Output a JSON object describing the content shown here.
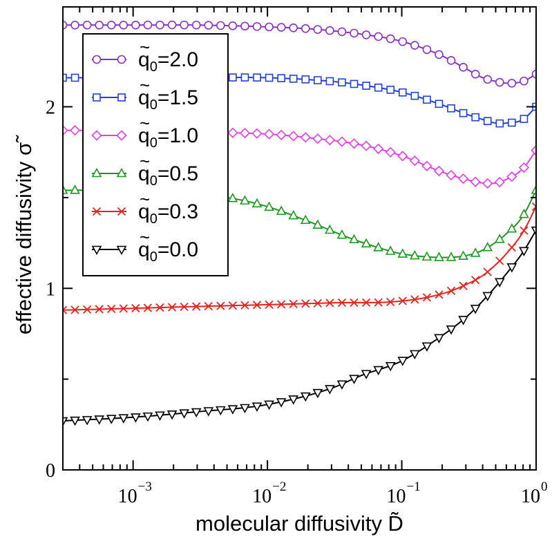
{
  "chart_data": {
    "type": "line",
    "xlabel": "molecular diffusivity D̃",
    "ylabel": "effective diffusivity σ̃",
    "xscale": "log",
    "xlim": [
      0.0003,
      1.0
    ],
    "ylim": [
      0,
      2.55
    ],
    "x_ticks": [
      {
        "value": 0.001,
        "base": "10",
        "exp": "−3"
      },
      {
        "value": 0.01,
        "base": "10",
        "exp": "−2"
      },
      {
        "value": 0.1,
        "base": "10",
        "exp": "−1"
      },
      {
        "value": 1.0,
        "base": "10",
        "exp": "0"
      }
    ],
    "y_ticks": [
      {
        "value": 0,
        "label": "0"
      },
      {
        "value": 1,
        "label": "1"
      },
      {
        "value": 2,
        "label": "2"
      }
    ],
    "y_minor_ticks": [
      0.5,
      1.5
    ],
    "legend_position": "upper-left",
    "series": [
      {
        "name": "q̃₀=2.0",
        "label_main": "q",
        "label_sub": "0",
        "label_value": "=2.0",
        "color": "#8b2fc9",
        "marker": "circle",
        "x": [
          0.0003,
          0.001,
          0.003,
          0.01,
          0.02,
          0.05,
          0.1,
          0.2,
          0.3,
          0.4,
          0.5,
          0.6,
          0.8,
          1.0
        ],
        "y": [
          2.45,
          2.45,
          2.45,
          2.44,
          2.43,
          2.4,
          2.36,
          2.28,
          2.21,
          2.16,
          2.14,
          2.13,
          2.14,
          2.18
        ]
      },
      {
        "name": "q̃₀=1.5",
        "label_main": "q",
        "label_sub": "0",
        "label_value": "=1.5",
        "color": "#1f3fe0",
        "marker": "square",
        "x": [
          0.0003,
          0.001,
          0.003,
          0.01,
          0.03,
          0.05,
          0.1,
          0.2,
          0.3,
          0.4,
          0.5,
          0.6,
          0.8,
          1.0
        ],
        "y": [
          2.16,
          2.16,
          2.16,
          2.16,
          2.14,
          2.12,
          2.08,
          2.01,
          1.96,
          1.93,
          1.91,
          1.91,
          1.93,
          2.0
        ]
      },
      {
        "name": "q̃₀=1.0",
        "label_main": "q",
        "label_sub": "0",
        "label_value": "=1.0",
        "color": "#e63ce6",
        "marker": "diamond",
        "x": [
          0.0003,
          0.001,
          0.003,
          0.01,
          0.02,
          0.05,
          0.1,
          0.2,
          0.3,
          0.4,
          0.5,
          0.6,
          0.8,
          1.0
        ],
        "y": [
          1.87,
          1.87,
          1.86,
          1.85,
          1.83,
          1.79,
          1.73,
          1.64,
          1.6,
          1.58,
          1.58,
          1.6,
          1.66,
          1.76
        ]
      },
      {
        "name": "q̃₀=0.5",
        "label_main": "q",
        "label_sub": "0",
        "label_value": "=0.5",
        "color": "#1a9a1a",
        "marker": "triangle-up",
        "x": [
          0.0003,
          0.001,
          0.003,
          0.006,
          0.01,
          0.02,
          0.04,
          0.07,
          0.1,
          0.2,
          0.3,
          0.4,
          0.6,
          0.8,
          1.0
        ],
        "y": [
          1.54,
          1.54,
          1.52,
          1.49,
          1.45,
          1.37,
          1.28,
          1.22,
          1.19,
          1.17,
          1.18,
          1.21,
          1.3,
          1.4,
          1.54
        ]
      },
      {
        "name": "q̃₀=0.3",
        "label_main": "q",
        "label_sub": "0",
        "label_value": "=0.3",
        "color": "#e8231e",
        "marker": "x",
        "x": [
          0.0003,
          0.001,
          0.003,
          0.01,
          0.03,
          0.1,
          0.2,
          0.3,
          0.4,
          0.5,
          0.6,
          0.8,
          1.0
        ],
        "y": [
          0.88,
          0.89,
          0.9,
          0.91,
          0.92,
          0.93,
          0.97,
          1.02,
          1.07,
          1.13,
          1.19,
          1.31,
          1.45
        ]
      },
      {
        "name": "q̃₀=0.0",
        "label_main": "q",
        "label_sub": "0",
        "label_value": "=0.0",
        "color": "#000000",
        "marker": "triangle-down",
        "x": [
          0.0003,
          0.001,
          0.003,
          0.01,
          0.03,
          0.05,
          0.1,
          0.2,
          0.3,
          0.4,
          0.5,
          0.6,
          0.8,
          1.0
        ],
        "y": [
          0.27,
          0.29,
          0.32,
          0.36,
          0.45,
          0.52,
          0.6,
          0.74,
          0.84,
          0.93,
          1.01,
          1.08,
          1.2,
          1.32
        ]
      }
    ]
  }
}
